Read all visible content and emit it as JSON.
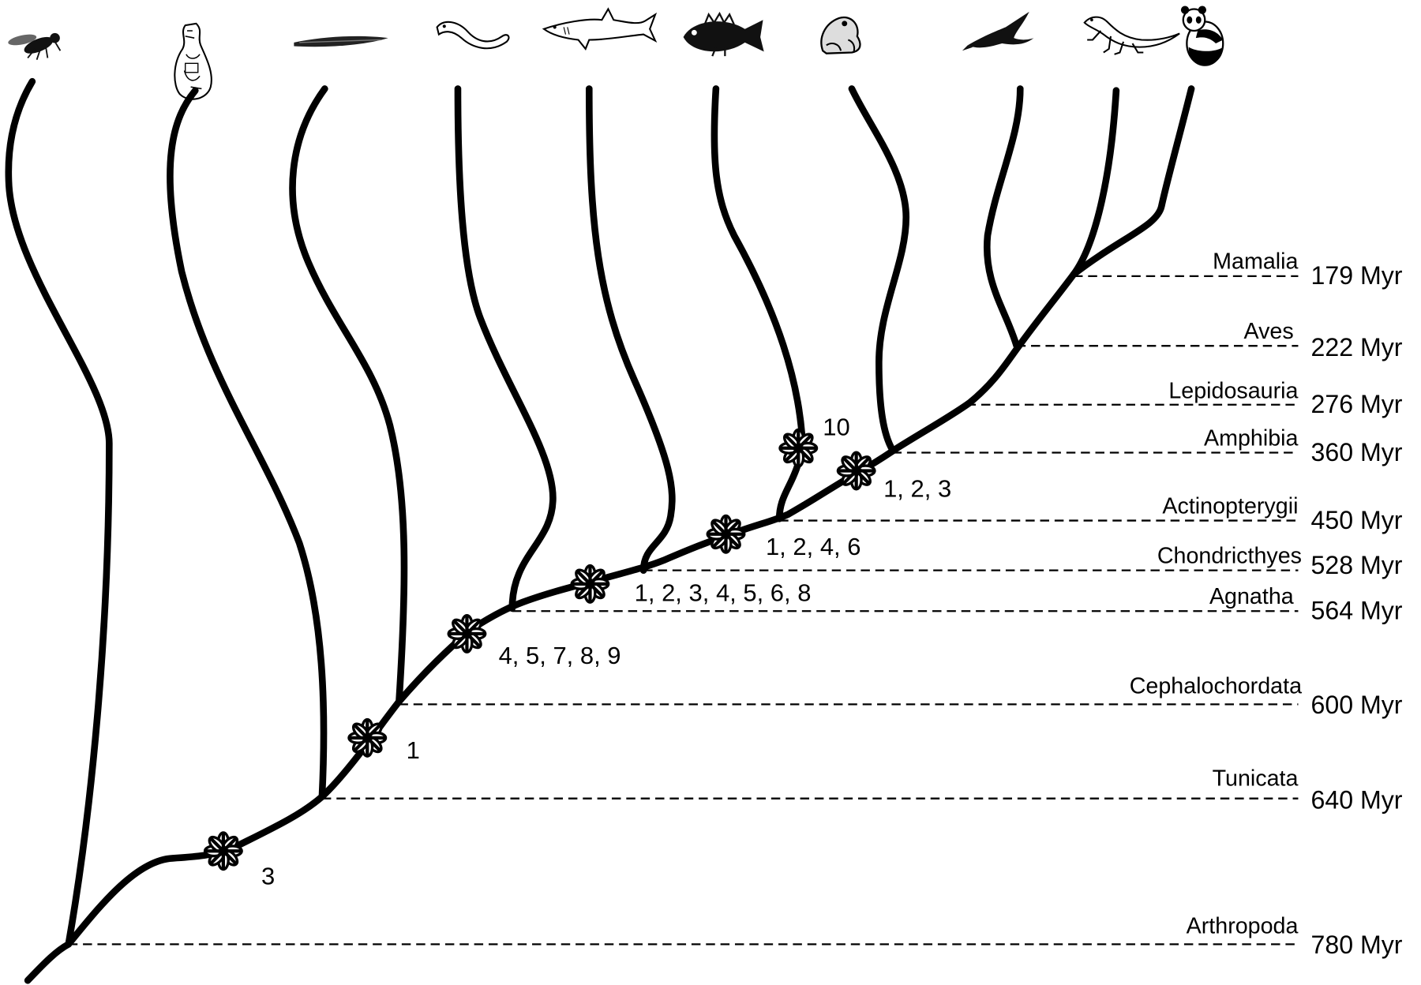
{
  "clades": [
    {
      "name": "Mamalia",
      "age": "179 Myr"
    },
    {
      "name": "Aves",
      "age": "222 Myr"
    },
    {
      "name": "Lepidosauria",
      "age": "276 Myr"
    },
    {
      "name": "Amphibia",
      "age": "360 Myr"
    },
    {
      "name": "Actinopterygii",
      "age": "450 Myr"
    },
    {
      "name": "Chondricthyes",
      "age": "528 Myr"
    },
    {
      "name": "Agnatha",
      "age": "564 Myr"
    },
    {
      "name": "Cephalochordata",
      "age": "600 Myr"
    },
    {
      "name": "Tunicata",
      "age": "640 Myr"
    },
    {
      "name": "Arthropoda",
      "age": "780 Myr"
    }
  ],
  "events": [
    "3",
    "1",
    "4, 5, 7, 8, 9",
    "1, 2, 3, 4, 5, 6, 8",
    "1, 2, 4, 6",
    "1, 2, 3",
    "10"
  ],
  "taxon_icons": [
    "fly-icon",
    "tunicate-icon",
    "lancelet-icon",
    "lamprey-icon",
    "shark-icon",
    "fish-icon",
    "frog-icon",
    "bird-icon",
    "lizard-icon",
    "panda-icon"
  ]
}
